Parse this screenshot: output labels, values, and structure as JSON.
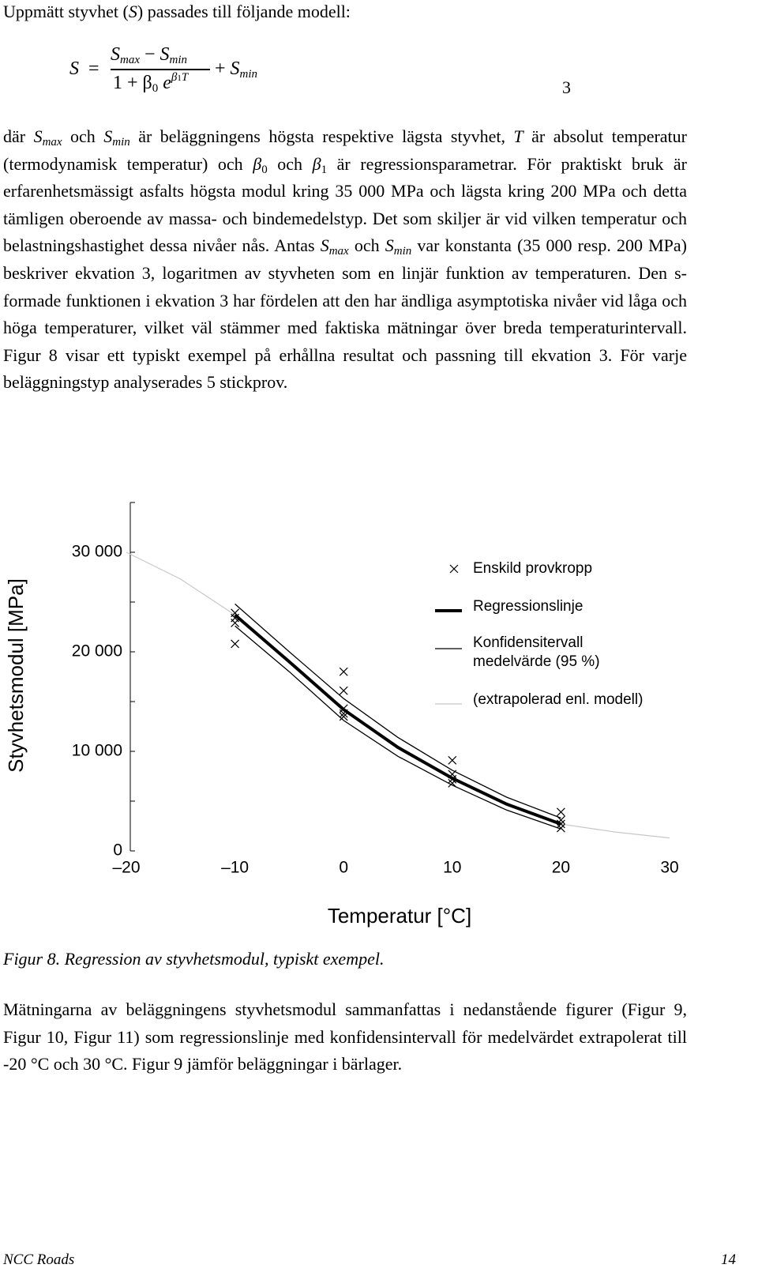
{
  "intro": [
    "Uppmätt styvhet (",
    "S",
    ") passades till följande modell:"
  ],
  "formula": {
    "lhs": "S",
    "eq": "=",
    "num": [
      "S",
      "max",
      "−",
      "S",
      "min"
    ],
    "den": [
      "1 + β",
      "0",
      "e",
      "β",
      "1",
      "T"
    ],
    "tail": [
      "+",
      "S",
      "min"
    ],
    "number": "3"
  },
  "paragraph_1": [
    "där ",
    "S",
    "max",
    " och ",
    "S",
    "min",
    " är beläggningens högsta respektive lägsta styvhet, ",
    "T",
    " är absolut temperatur (termodynamisk temperatur) och ",
    "β",
    "0",
    " och ",
    "β",
    "1",
    " är regressionsparametrar. För praktiskt bruk är erfarenhetsmässigt asfalts högsta modul kring 35 000 MPa och lägsta kring 200 MPa och detta tämligen oberoende av massa- och bindemedelstyp. Det som skiljer är vid vilken temperatur och belastningshastighet dessa nivåer nås. Antas ",
    "S",
    "max",
    " och ",
    "S",
    "min",
    " var konstanta (35 000 resp. 200 MPa) beskriver ekvation 3, logaritmen av styvheten som en linjär funktion av temperaturen. Den s-formade funktionen i ekvation 3 har fördelen att den har ändliga asymptotiska nivåer vid låga och höga temperaturer, vilket väl stämmer med faktiska mätningar över breda temperaturintervall. Figur 8 visar ett typiskt exempel på erhållna resultat och passning till ekvation 3. För varje beläggningstyp analyserades 5 stickprov."
  ],
  "chart_data": {
    "type": "line",
    "x_label": "Temperatur [°C]",
    "y_label": "Styvhetsmodul [MPa]",
    "xlim": [
      -20,
      30
    ],
    "ylim": [
      0,
      35000
    ],
    "xticks": [
      {
        "value": -20,
        "label": "–20"
      },
      {
        "value": -10,
        "label": "–10"
      },
      0,
      10,
      20,
      30
    ],
    "yticks": [
      0,
      {
        "value": 10000,
        "label": "10 000"
      },
      {
        "value": 20000,
        "label": "20 000"
      },
      {
        "value": 30000,
        "label": "30 000"
      }
    ],
    "yminor": [
      5000,
      15000,
      25000,
      35000
    ],
    "series": [
      {
        "name": "Enskild provkropp",
        "type": "scatter",
        "color": "#000000",
        "x": [
          -10,
          -10,
          -10,
          -10,
          0,
          0,
          0,
          0,
          0,
          10,
          10,
          10,
          10,
          20,
          20,
          20,
          20
        ],
        "values": [
          23900,
          23400,
          22900,
          20800,
          18000,
          16100,
          14300,
          13800,
          13500,
          9100,
          7700,
          7200,
          6800,
          3900,
          3100,
          2700,
          2300
        ]
      },
      {
        "name": "Regressionslinje",
        "type": "line",
        "color": "#000000",
        "line_width": 4,
        "x": [
          -10,
          -5,
          0,
          5,
          10,
          15,
          20
        ],
        "values": [
          23700,
          19000,
          14200,
          10400,
          7300,
          4700,
          2700
        ]
      },
      {
        "name": "Konfidensitervall medelvärde (95 %)",
        "type": "band_lines",
        "color": "#000000",
        "line_width": 1.3,
        "x": [
          -10,
          -5,
          0,
          5,
          10,
          15,
          20
        ],
        "upper": [
          24800,
          20000,
          15300,
          11400,
          8100,
          5400,
          3300
        ],
        "lower": [
          22600,
          18000,
          13100,
          9500,
          6600,
          4100,
          2200
        ]
      },
      {
        "name": "(extrapolerad enl. modell)",
        "type": "line",
        "color": "#c8c8c8",
        "line_width": 1.2,
        "x": [
          -20,
          -15,
          -10,
          -5,
          0,
          5,
          10,
          15,
          20,
          25,
          30
        ],
        "values": [
          30000,
          27300,
          23700,
          19000,
          14200,
          10400,
          7300,
          4700,
          2700,
          1900,
          1300
        ]
      }
    ]
  },
  "caption": "Figur 8. Regression av styvhetsmodul, typiskt exempel.",
  "paragraph_2": "Mätningarna av beläggningens styvhetsmodul sammanfattas i nedanstående figurer (Figur 9, Figur 10, Figur 11) som regressionslinje med konfidensintervall för medelvärdet extrapolerat till -20 °C och 30 °C. Figur 9 jämför beläggningar i bärlager.",
  "footer": {
    "left": "NCC Roads",
    "right": "14"
  }
}
